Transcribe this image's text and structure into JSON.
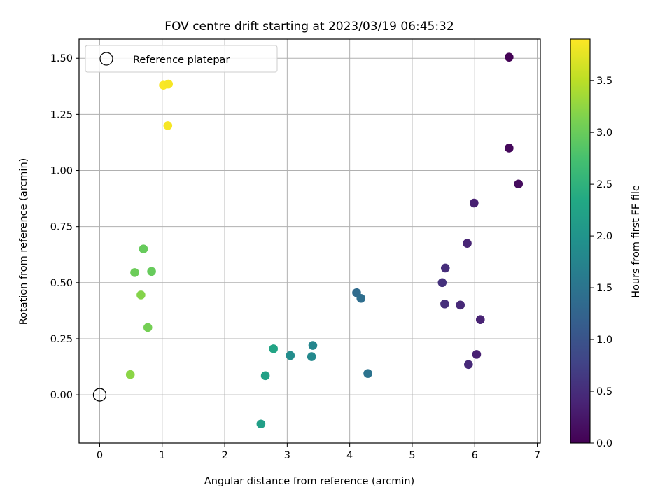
{
  "chart_data": {
    "type": "scatter",
    "title": "FOV centre drift starting at 2023/03/19 06:45:32",
    "xlabel": "Angular distance from reference (arcmin)",
    "ylabel": "Rotation from reference (arcmin)",
    "xlim": [
      -0.33,
      7.05
    ],
    "ylim": [
      -0.215,
      1.585
    ],
    "xticks": [
      0,
      1,
      2,
      3,
      4,
      5,
      6,
      7
    ],
    "xtick_labels": [
      "0",
      "1",
      "2",
      "3",
      "4",
      "5",
      "6",
      "7"
    ],
    "yticks": [
      0.0,
      0.25,
      0.5,
      0.75,
      1.0,
      1.25,
      1.5
    ],
    "ytick_labels": [
      "0.00",
      "0.25",
      "0.50",
      "0.75",
      "1.00",
      "1.25",
      "1.50"
    ],
    "grid": true,
    "legend": {
      "placement": "top-left",
      "entries": [
        "Reference platepar"
      ]
    },
    "reference_point": {
      "x": 0,
      "y": 0
    },
    "colorbar": {
      "label": "Hours from first FF file",
      "colormap": "viridis",
      "range": [
        0.0,
        3.9
      ],
      "ticks": [
        0.0,
        0.5,
        1.0,
        1.5,
        2.0,
        2.5,
        3.0,
        3.5
      ],
      "tick_labels": [
        "0.0",
        "0.5",
        "1.0",
        "1.5",
        "2.0",
        "2.5",
        "3.0",
        "3.5"
      ]
    },
    "points": [
      {
        "x": 6.55,
        "y": 1.505,
        "c": 0.02
      },
      {
        "x": 6.55,
        "y": 1.1,
        "c": 0.08
      },
      {
        "x": 6.7,
        "y": 0.94,
        "c": 0.12
      },
      {
        "x": 5.99,
        "y": 0.855,
        "c": 0.35
      },
      {
        "x": 5.88,
        "y": 0.675,
        "c": 0.4
      },
      {
        "x": 5.53,
        "y": 0.565,
        "c": 0.5
      },
      {
        "x": 5.48,
        "y": 0.5,
        "c": 0.55
      },
      {
        "x": 5.52,
        "y": 0.405,
        "c": 0.52
      },
      {
        "x": 5.77,
        "y": 0.4,
        "c": 0.45
      },
      {
        "x": 6.09,
        "y": 0.335,
        "c": 0.38
      },
      {
        "x": 6.03,
        "y": 0.18,
        "c": 0.35
      },
      {
        "x": 5.9,
        "y": 0.135,
        "c": 0.45
      },
      {
        "x": 4.11,
        "y": 0.455,
        "c": 1.35
      },
      {
        "x": 4.18,
        "y": 0.43,
        "c": 1.4
      },
      {
        "x": 4.29,
        "y": 0.095,
        "c": 1.48
      },
      {
        "x": 3.41,
        "y": 0.22,
        "c": 1.78
      },
      {
        "x": 3.39,
        "y": 0.17,
        "c": 1.82
      },
      {
        "x": 3.05,
        "y": 0.175,
        "c": 1.88
      },
      {
        "x": 2.78,
        "y": 0.205,
        "c": 2.28
      },
      {
        "x": 2.65,
        "y": 0.085,
        "c": 2.22
      },
      {
        "x": 2.58,
        "y": -0.13,
        "c": 2.18
      },
      {
        "x": 0.7,
        "y": 0.65,
        "c": 2.98
      },
      {
        "x": 0.56,
        "y": 0.545,
        "c": 3.02
      },
      {
        "x": 0.83,
        "y": 0.55,
        "c": 2.98
      },
      {
        "x": 0.66,
        "y": 0.445,
        "c": 3.18
      },
      {
        "x": 0.77,
        "y": 0.3,
        "c": 3.08
      },
      {
        "x": 0.49,
        "y": 0.09,
        "c": 3.22
      },
      {
        "x": 1.02,
        "y": 1.38,
        "c": 3.88
      },
      {
        "x": 1.1,
        "y": 1.385,
        "c": 3.86
      },
      {
        "x": 1.09,
        "y": 1.2,
        "c": 3.86
      }
    ]
  }
}
